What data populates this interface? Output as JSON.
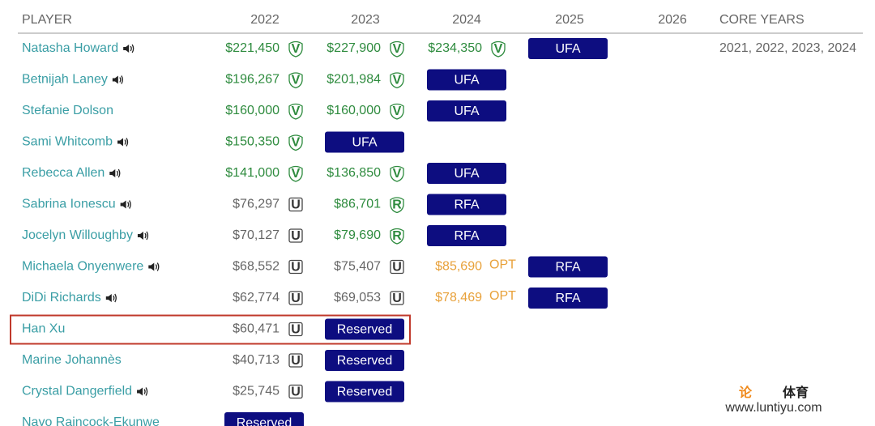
{
  "table": {
    "columns": [
      "PLAYER",
      "2022",
      "2023",
      "2024",
      "2025",
      "2026",
      "CORE YEARS"
    ],
    "rows": [
      {
        "name": "Natasha Howard",
        "audio": true,
        "cells": [
          {
            "amount": "$221,450",
            "badge": "V"
          },
          {
            "amount": "$227,900",
            "badge": "V"
          },
          {
            "amount": "$234,350",
            "badge": "V"
          },
          {
            "status": "UFA"
          },
          null
        ],
        "core_years": "2021, 2022, 2023, 2024"
      },
      {
        "name": "Betnijah Laney",
        "audio": true,
        "cells": [
          {
            "amount": "$196,267",
            "badge": "V"
          },
          {
            "amount": "$201,984",
            "badge": "V"
          },
          {
            "status": "UFA"
          },
          null,
          null
        ]
      },
      {
        "name": "Stefanie Dolson",
        "audio": false,
        "cells": [
          {
            "amount": "$160,000",
            "badge": "V"
          },
          {
            "amount": "$160,000",
            "badge": "V"
          },
          {
            "status": "UFA"
          },
          null,
          null
        ]
      },
      {
        "name": "Sami Whitcomb",
        "audio": true,
        "cells": [
          {
            "amount": "$150,350",
            "badge": "V"
          },
          {
            "status": "UFA"
          },
          null,
          null,
          null
        ]
      },
      {
        "name": "Rebecca Allen",
        "audio": true,
        "cells": [
          {
            "amount": "$141,000",
            "badge": "V"
          },
          {
            "amount": "$136,850",
            "badge": "V"
          },
          {
            "status": "UFA"
          },
          null,
          null
        ]
      },
      {
        "name": "Sabrina Ionescu",
        "audio": true,
        "cells": [
          {
            "amount": "$76,297",
            "badge": "U"
          },
          {
            "amount": "$86,701",
            "badge": "R"
          },
          {
            "status": "RFA"
          },
          null,
          null
        ]
      },
      {
        "name": "Jocelyn Willoughby",
        "audio": true,
        "cells": [
          {
            "amount": "$70,127",
            "badge": "U"
          },
          {
            "amount": "$79,690",
            "badge": "R"
          },
          {
            "status": "RFA"
          },
          null,
          null
        ]
      },
      {
        "name": "Michaela Onyenwere",
        "audio": true,
        "cells": [
          {
            "amount": "$68,552",
            "badge": "U"
          },
          {
            "amount": "$75,407",
            "badge": "U"
          },
          {
            "amount": "$85,690",
            "badge": "OPT"
          },
          {
            "status": "RFA"
          },
          null
        ]
      },
      {
        "name": "DiDi Richards",
        "audio": true,
        "cells": [
          {
            "amount": "$62,774",
            "badge": "U"
          },
          {
            "amount": "$69,053",
            "badge": "U"
          },
          {
            "amount": "$78,469",
            "badge": "OPT"
          },
          {
            "status": "RFA"
          },
          null
        ]
      },
      {
        "name": "Han Xu",
        "audio": false,
        "highlight": true,
        "cells": [
          {
            "amount": "$60,471",
            "badge": "U"
          },
          {
            "status": "Reserved"
          },
          null,
          null,
          null
        ]
      },
      {
        "name": "Marine Johannès",
        "audio": false,
        "cells": [
          {
            "amount": "$40,713",
            "badge": "U"
          },
          {
            "status": "Reserved"
          },
          null,
          null,
          null
        ]
      },
      {
        "name": "Crystal Dangerfield",
        "audio": true,
        "cells": [
          {
            "amount": "$25,745",
            "badge": "U"
          },
          {
            "status": "Reserved"
          },
          null,
          null,
          null
        ]
      },
      {
        "name": "Nayo Raincock-Ekunwe",
        "audio": false,
        "cells": [
          {
            "status": "Reserved"
          },
          null,
          null,
          null,
          null
        ]
      }
    ]
  },
  "watermark": {
    "logo_1": "论",
    "logo_2": "体育",
    "url": "www.luntiyu.com"
  }
}
